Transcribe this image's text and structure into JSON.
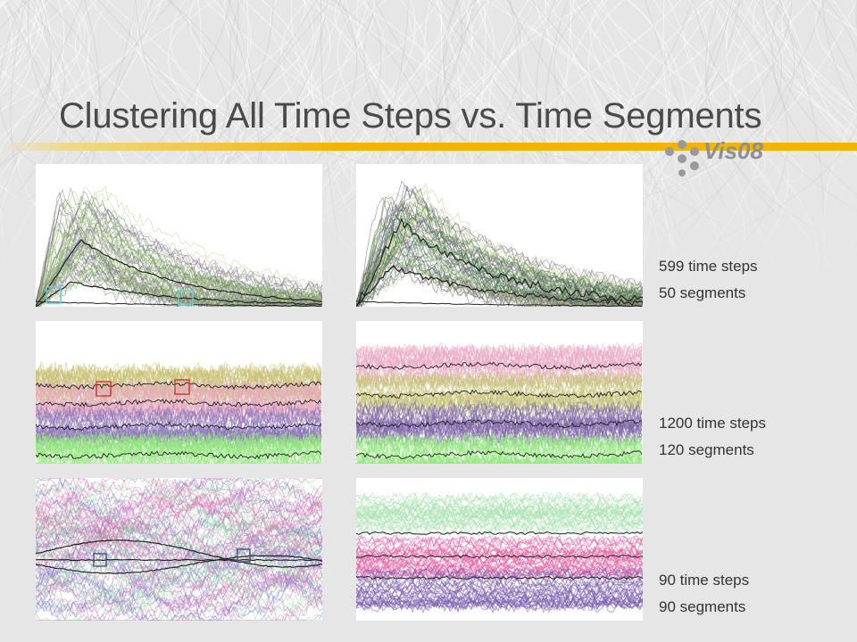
{
  "slide": {
    "title": "Clustering All Time Steps vs. Time Segments",
    "logo_text": "Vis08"
  },
  "rows": [
    {
      "time_steps": "599 time steps",
      "segments": "50 segments"
    },
    {
      "time_steps": "1200 time steps",
      "segments": "120 segments"
    },
    {
      "time_steps": "90 time steps",
      "segments": "90 segments"
    }
  ],
  "colors": {
    "accent_bar": "#f2b400",
    "title": "#4a4a4a",
    "row1_left": [
      "#b7cf8a",
      "#6f9a5c",
      "#7b6a8f"
    ],
    "row1_right": [
      "#6b5a7e",
      "#3d7a3f",
      "#b8c785"
    ],
    "row2_left": [
      "#c7c070",
      "#e8a7c0",
      "#8c74b8",
      "#8fe77a"
    ],
    "row2_right": [
      "#e9a9c4",
      "#c6c477",
      "#7d63a6",
      "#8fe77a"
    ],
    "row3_left": [
      "#e36fb0",
      "#90d8a3",
      "#8a74c9"
    ],
    "row3_right": [
      "#a9e2b1",
      "#e65ca1",
      "#7a5cae"
    ]
  }
}
